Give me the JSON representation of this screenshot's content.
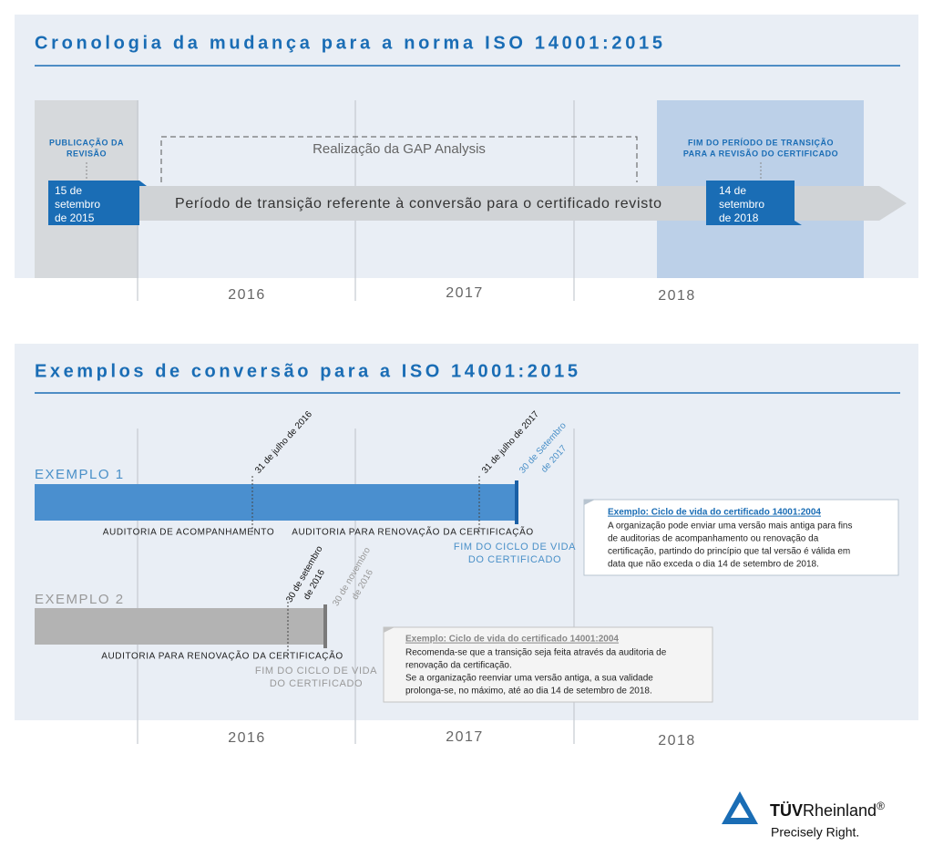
{
  "section1": {
    "title": "Cronologia da mudança para a norma ISO 14001:2015",
    "publication": {
      "label": [
        "PUBLICAÇÃO DA",
        "REVISÃO"
      ],
      "date": [
        "15 de",
        "setembro",
        "de 2015"
      ]
    },
    "gap_analysis": "Realização da GAP Analysis",
    "transition": "Período de transição referente à conversão para o certificado revisto",
    "end": {
      "label": [
        "FIM DO PERÍODO DE TRANSIÇÃO",
        "PARA A REVISÃO DO CERTIFICADO"
      ],
      "date": [
        "14 de",
        "setembro",
        "de 2018"
      ]
    },
    "years": [
      "2016",
      "2017",
      "2018"
    ]
  },
  "section2": {
    "title": "Exemplos de conversão para a ISO 14001:2015",
    "example1": {
      "label": "EXEMPLO 1",
      "dates": [
        "31 de julho de 2016",
        "31 de julho de 2017"
      ],
      "end_date": [
        "30 de Setembro",
        "de 2017"
      ],
      "audits": [
        "AUDITORIA DE ACOMPANHAMENTO",
        "AUDITORIA PARA RENOVAÇÃO DA CERTIFICAÇÃO"
      ],
      "end_label": [
        "FIM DO CICLO DE VIDA",
        "DO CERTIFICADO"
      ],
      "note": {
        "title": "Exemplo: Ciclo de vida do certificado 14001:2004",
        "lines": [
          "A organização pode enviar uma versão mais antiga para fins",
          "de auditorias de acompanhamento ou renovação da",
          "certificação, partindo do princípio que tal versão é válida em",
          "data que não exceda o dia 14 de setembro de 2018."
        ]
      }
    },
    "example2": {
      "label": "EXEMPLO 2",
      "date": [
        "30 de setembro",
        "de 2016"
      ],
      "end_date": [
        "30 de novembro",
        "de 2016"
      ],
      "audit": "AUDITORIA PARA RENOVAÇÃO DA CERTIFICAÇÃO",
      "end_label": [
        "FIM DO CICLO DE VIDA",
        "DO CERTIFICADO"
      ],
      "note": {
        "title": "Exemplo: Ciclo de vida do certificado 14001:2004",
        "lines": [
          "Recomenda-se que a transição seja feita através da auditoria de",
          "renovação da certificação.",
          "Se a organização reenviar uma versão antiga, a sua validade",
          "prolonga-se, no máximo, até ao dia 14 de setembro de 2018."
        ]
      }
    },
    "years": [
      "2016",
      "2017",
      "2018"
    ]
  },
  "logo": {
    "brand_bold": "TÜV",
    "brand": "Rheinland",
    "mark": "®",
    "tagline": "Precisely Right."
  }
}
